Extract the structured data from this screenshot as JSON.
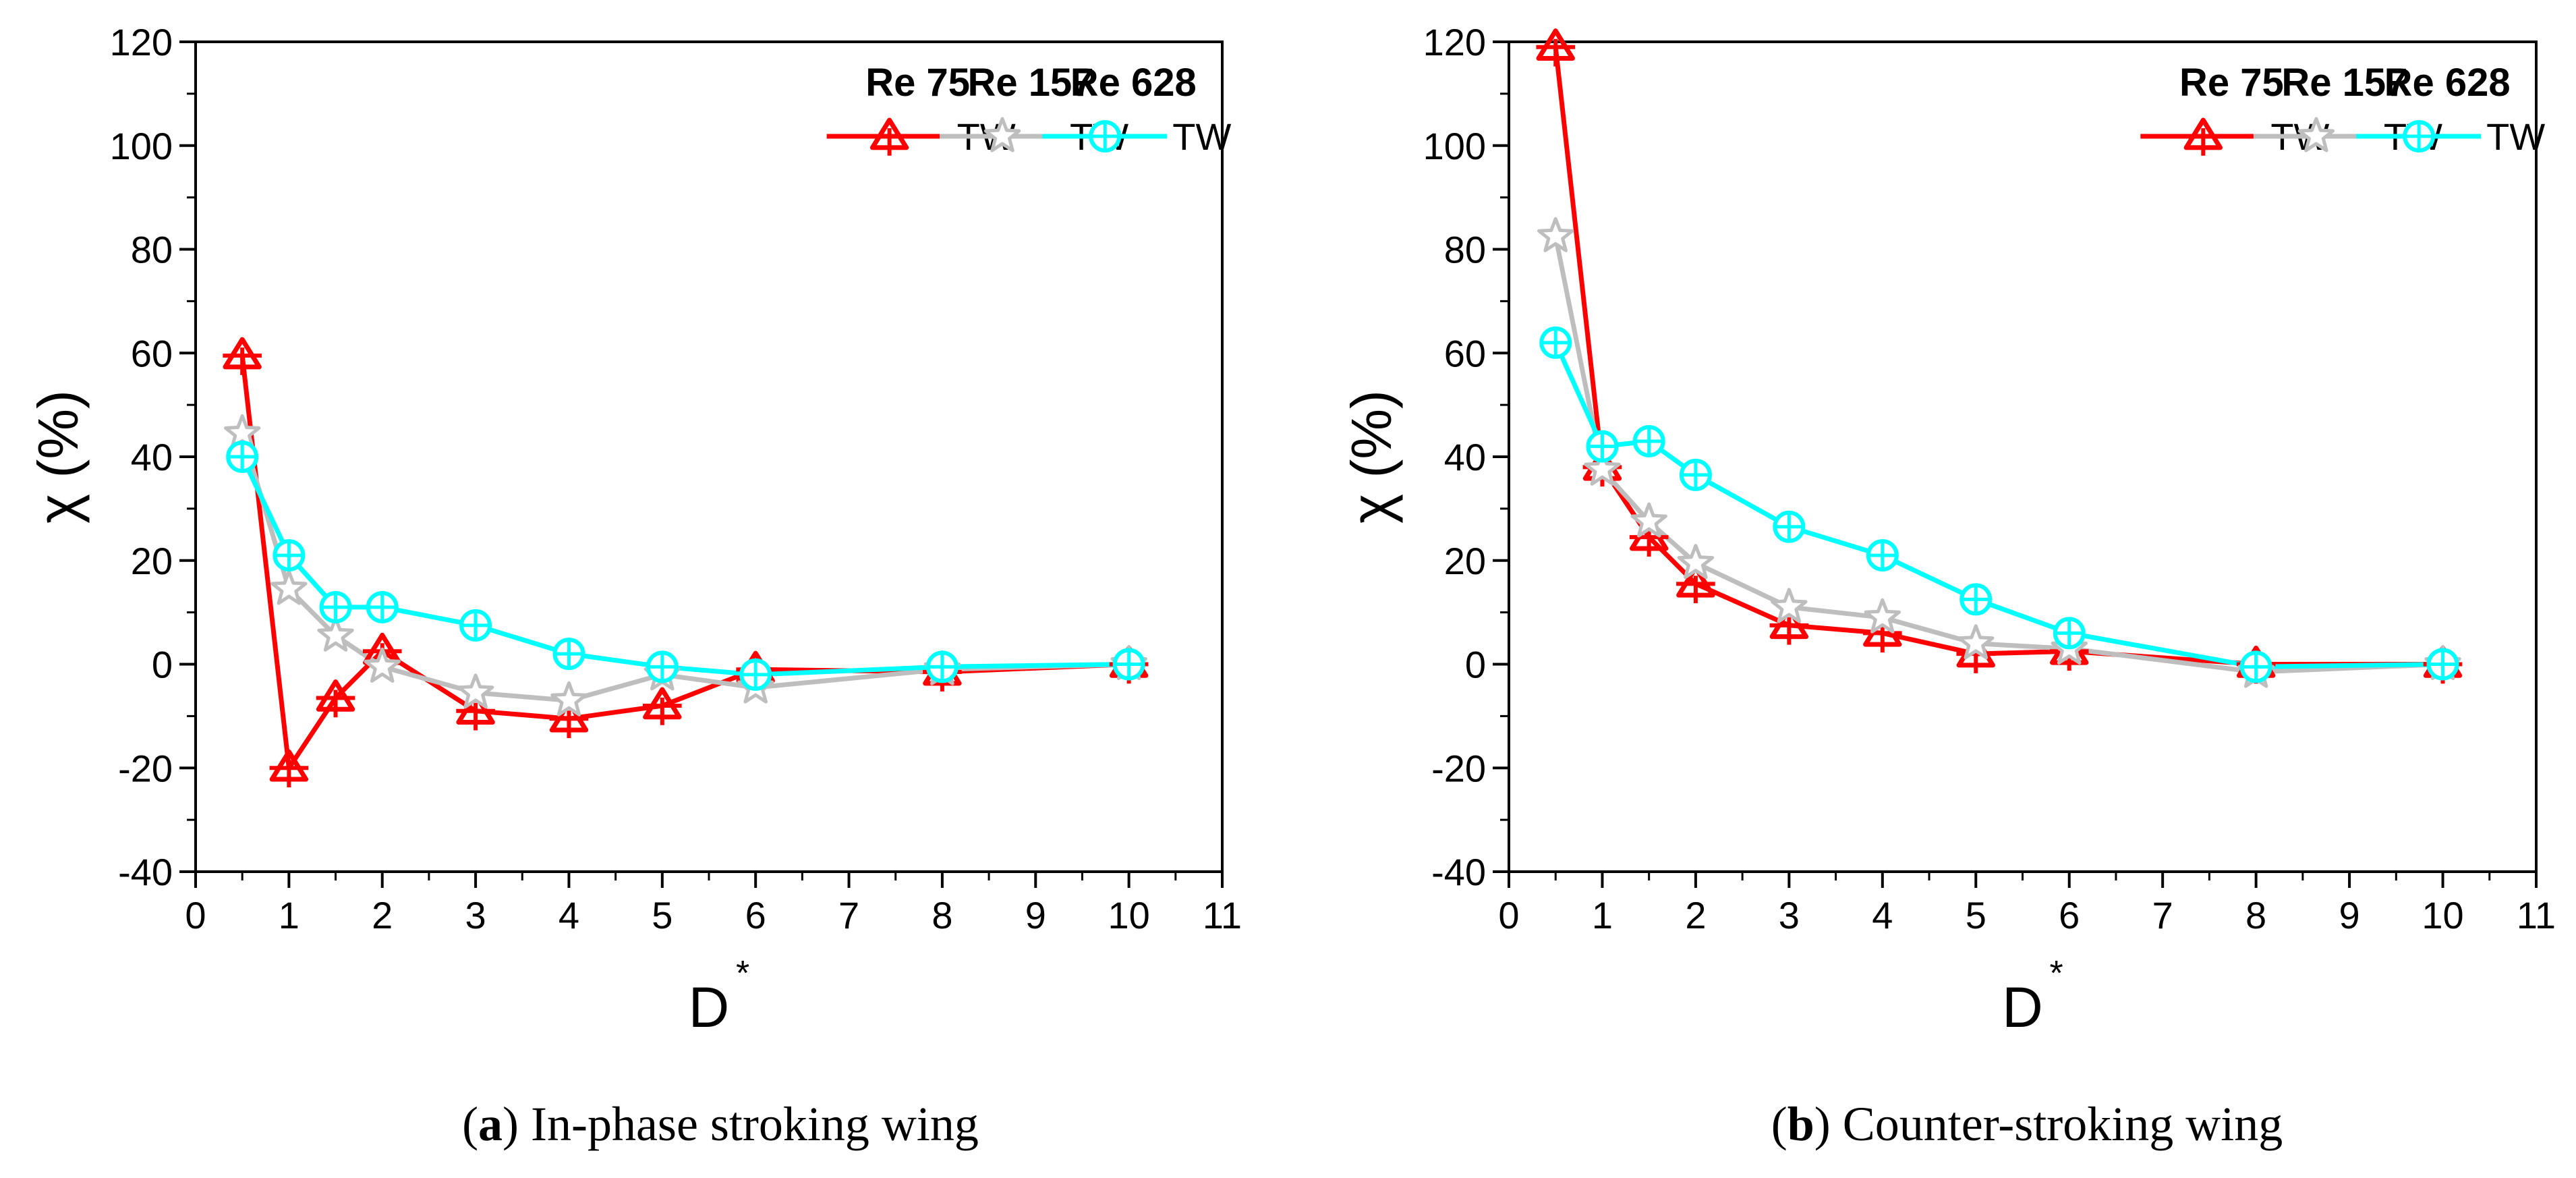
{
  "chart_data": [
    {
      "type": "line",
      "caption_letter": "a",
      "caption_text": "In-phase stroking wing",
      "xlabel": "D",
      "xlabel_sup": "*",
      "ylabel": "χ (%)",
      "xlim": [
        0,
        11
      ],
      "ylim": [
        -40,
        120
      ],
      "xticks": [
        0,
        1,
        2,
        3,
        4,
        5,
        6,
        7,
        8,
        9,
        10,
        11
      ],
      "yticks": [
        -40,
        -20,
        0,
        20,
        40,
        60,
        80,
        100,
        120
      ],
      "series": [
        {
          "name": "Re 75",
          "legend_label": "TW",
          "color": "#ff0000",
          "marker": "triangle",
          "x": [
            0.5,
            1,
            1.5,
            2,
            3,
            4,
            5,
            6,
            8,
            10
          ],
          "y": [
            59.5,
            -20,
            -6.5,
            2.5,
            -9,
            -10.5,
            -8,
            -1,
            -1.5,
            0
          ]
        },
        {
          "name": "Re 157",
          "legend_label": "TW",
          "color": "#bebebe",
          "marker": "star",
          "x": [
            0.5,
            1,
            1.5,
            2,
            3,
            4,
            5,
            6,
            8,
            10
          ],
          "y": [
            44.5,
            14.5,
            5.5,
            -0.5,
            -5.5,
            -7,
            -2,
            -4.5,
            -1,
            0
          ]
        },
        {
          "name": "Re 628",
          "legend_label": "TW",
          "color": "#00ffff",
          "marker": "circle-cross",
          "x": [
            0.5,
            1,
            1.5,
            2,
            3,
            4,
            5,
            6,
            8,
            10
          ],
          "y": [
            40,
            21,
            11,
            11,
            7.5,
            2,
            -0.5,
            -2,
            -0.5,
            0
          ]
        }
      ]
    },
    {
      "type": "line",
      "caption_letter": "b",
      "caption_text": "Counter-stroking wing",
      "xlabel": "D",
      "xlabel_sup": "*",
      "ylabel": "χ (%)",
      "xlim": [
        0,
        11
      ],
      "ylim": [
        -40,
        120
      ],
      "xticks": [
        0,
        1,
        2,
        3,
        4,
        5,
        6,
        7,
        8,
        9,
        10,
        11
      ],
      "yticks": [
        -40,
        -20,
        0,
        20,
        40,
        60,
        80,
        100,
        120
      ],
      "series": [
        {
          "name": "Re 75",
          "legend_label": "TW",
          "color": "#ff0000",
          "marker": "triangle",
          "x": [
            0.5,
            1,
            1.5,
            2,
            3,
            4,
            5,
            6,
            8,
            10
          ],
          "y": [
            119,
            38,
            24.5,
            15.5,
            7.5,
            6,
            2,
            2.5,
            0,
            0
          ]
        },
        {
          "name": "Re 157",
          "legend_label": "TW",
          "color": "#bebebe",
          "marker": "star",
          "x": [
            0.5,
            1,
            1.5,
            2,
            3,
            4,
            5,
            6,
            8,
            10
          ],
          "y": [
            82.5,
            37.5,
            27.5,
            19.5,
            11,
            9,
            4,
            3,
            -1.5,
            0
          ]
        },
        {
          "name": "Re 628",
          "legend_label": "TW",
          "color": "#00ffff",
          "marker": "circle-cross",
          "x": [
            0.5,
            1,
            1.5,
            2,
            3,
            4,
            5,
            6,
            8,
            10
          ],
          "y": [
            62,
            42,
            43,
            36.5,
            26.5,
            21,
            12.5,
            6,
            -0.5,
            0
          ]
        }
      ]
    }
  ]
}
